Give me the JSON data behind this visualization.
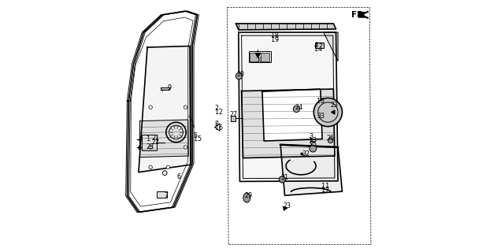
{
  "bg_color": "#ffffff",
  "line_color": "#000000",
  "fig_width": 6.31,
  "fig_height": 3.2,
  "dpi": 100
}
